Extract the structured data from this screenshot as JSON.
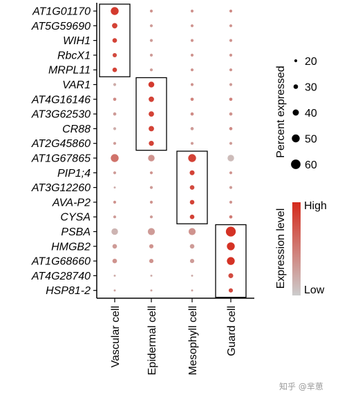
{
  "chart_data": {
    "type": "dotplot",
    "genes": [
      "AT1G01170",
      "AT5G59690",
      "WIH1",
      "RbcX1",
      "MRPL11",
      "VAR1",
      "AT4G16146",
      "AT3G62530",
      "CR88",
      "AT2G45860",
      "AT1G67865",
      "PIP1;4",
      "AT3G12260",
      "AVA-P2",
      "CYSA",
      "PSBA",
      "HMGB2",
      "AT1G68660",
      "AT4G28740",
      "HSP81-2"
    ],
    "cell_types": [
      "Vascular cell",
      "Epidermal cell",
      "Mesophyll cell",
      "Guard cell"
    ],
    "percent_expressed": [
      [
        50,
        20,
        20,
        20
      ],
      [
        35,
        20,
        20,
        20
      ],
      [
        30,
        20,
        20,
        20
      ],
      [
        28,
        20,
        20,
        20
      ],
      [
        30,
        20,
        20,
        20
      ],
      [
        20,
        38,
        20,
        20
      ],
      [
        22,
        35,
        22,
        22
      ],
      [
        22,
        35,
        22,
        22
      ],
      [
        20,
        35,
        22,
        22
      ],
      [
        20,
        33,
        20,
        20
      ],
      [
        50,
        42,
        50,
        42
      ],
      [
        20,
        20,
        32,
        20
      ],
      [
        15,
        20,
        30,
        20
      ],
      [
        20,
        20,
        30,
        20
      ],
      [
        20,
        20,
        30,
        22
      ],
      [
        42,
        45,
        45,
        62
      ],
      [
        30,
        28,
        30,
        50
      ],
      [
        30,
        28,
        28,
        50
      ],
      [
        15,
        15,
        15,
        32
      ],
      [
        15,
        15,
        15,
        28
      ]
    ],
    "expression_level": [
      [
        0.9,
        0.35,
        0.35,
        0.4
      ],
      [
        0.85,
        0.3,
        0.35,
        0.35
      ],
      [
        0.85,
        0.3,
        0.35,
        0.35
      ],
      [
        0.8,
        0.3,
        0.35,
        0.35
      ],
      [
        0.85,
        0.3,
        0.35,
        0.35
      ],
      [
        0.2,
        0.9,
        0.35,
        0.3
      ],
      [
        0.4,
        0.85,
        0.45,
        0.45
      ],
      [
        0.3,
        0.85,
        0.4,
        0.35
      ],
      [
        0.2,
        0.85,
        0.3,
        0.4
      ],
      [
        0.3,
        0.85,
        0.3,
        0.3
      ],
      [
        0.55,
        0.35,
        0.85,
        0.1
      ],
      [
        0.3,
        0.35,
        0.85,
        0.35
      ],
      [
        0.2,
        0.3,
        0.8,
        0.3
      ],
      [
        0.35,
        0.35,
        0.85,
        0.35
      ],
      [
        0.3,
        0.3,
        0.85,
        0.5
      ],
      [
        0.15,
        0.3,
        0.35,
        0.95
      ],
      [
        0.3,
        0.35,
        0.3,
        0.95
      ],
      [
        0.35,
        0.35,
        0.3,
        0.95
      ],
      [
        0.2,
        0.2,
        0.2,
        0.8
      ],
      [
        0.25,
        0.25,
        0.25,
        0.8
      ]
    ],
    "highlight_boxes": [
      {
        "cell_type": "Vascular cell",
        "genes": [
          "AT1G01170",
          "AT5G59690",
          "WIH1",
          "RbcX1",
          "MRPL11"
        ]
      },
      {
        "cell_type": "Epidermal cell",
        "genes": [
          "VAR1",
          "AT4G16146",
          "AT3G62530",
          "CR88",
          "AT2G45860"
        ]
      },
      {
        "cell_type": "Mesophyll cell",
        "genes": [
          "AT1G67865",
          "PIP1;4",
          "AT3G12260",
          "AVA-P2",
          "CYSA"
        ]
      },
      {
        "cell_type": "Guard cell",
        "genes": [
          "PSBA",
          "HMGB2",
          "AT1G68660",
          "AT4G28740",
          "HSP81-2"
        ]
      }
    ],
    "size_legend": {
      "title": "Percent expressed",
      "values": [
        20,
        30,
        40,
        50,
        60
      ],
      "labels": [
        "20",
        "30",
        "40",
        "50",
        "60"
      ]
    },
    "color_legend": {
      "title": "Expression level",
      "high_label": "High",
      "low_label": "Low",
      "low_color": "#cccccc",
      "high_color": "#d42a1c"
    }
  },
  "watermark": "知乎 @芈葸"
}
